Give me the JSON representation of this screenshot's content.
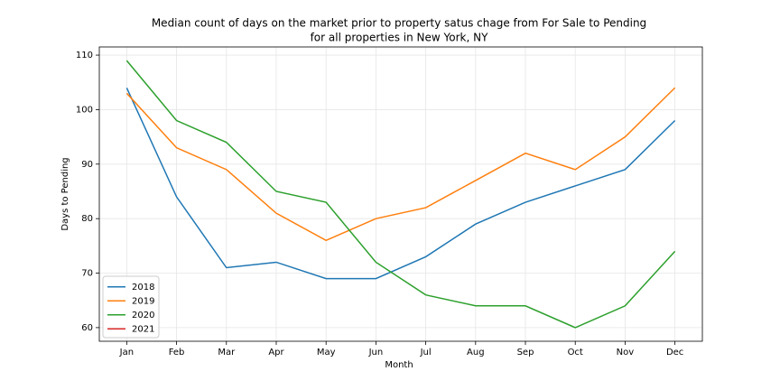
{
  "chart_data": {
    "type": "line",
    "title": "Median count of days on the market prior to property satus chage from For Sale to Pending",
    "subtitle": "for all properties in New York, NY",
    "x_label": "Month",
    "y_label": "Days to Pending",
    "categories": [
      "Jan",
      "Feb",
      "Mar",
      "Apr",
      "May",
      "Jun",
      "Jul",
      "Aug",
      "Sep",
      "Oct",
      "Nov",
      "Dec"
    ],
    "series": [
      {
        "name": "2018",
        "color": "#1f77b4",
        "values": [
          104,
          84,
          71,
          72,
          69,
          69,
          73,
          79,
          83,
          86,
          89,
          98
        ]
      },
      {
        "name": "2019",
        "color": "#ff7f0e",
        "values": [
          103,
          93,
          89,
          81,
          76,
          80,
          82,
          87,
          92,
          89,
          95,
          104
        ]
      },
      {
        "name": "2020",
        "color": "#2ca02c",
        "values": [
          109,
          98,
          94,
          85,
          83,
          72,
          66,
          64,
          64,
          60,
          64,
          74
        ]
      },
      {
        "name": "2021",
        "color": "#d62728",
        "values": [
          null,
          null,
          null,
          null,
          null,
          null,
          null,
          null,
          null,
          null,
          null,
          null
        ]
      }
    ],
    "ylim": [
      57.5,
      111.5
    ],
    "yticks": [
      60,
      70,
      80,
      90,
      100,
      110
    ],
    "grid": true,
    "legend": "lower left"
  }
}
